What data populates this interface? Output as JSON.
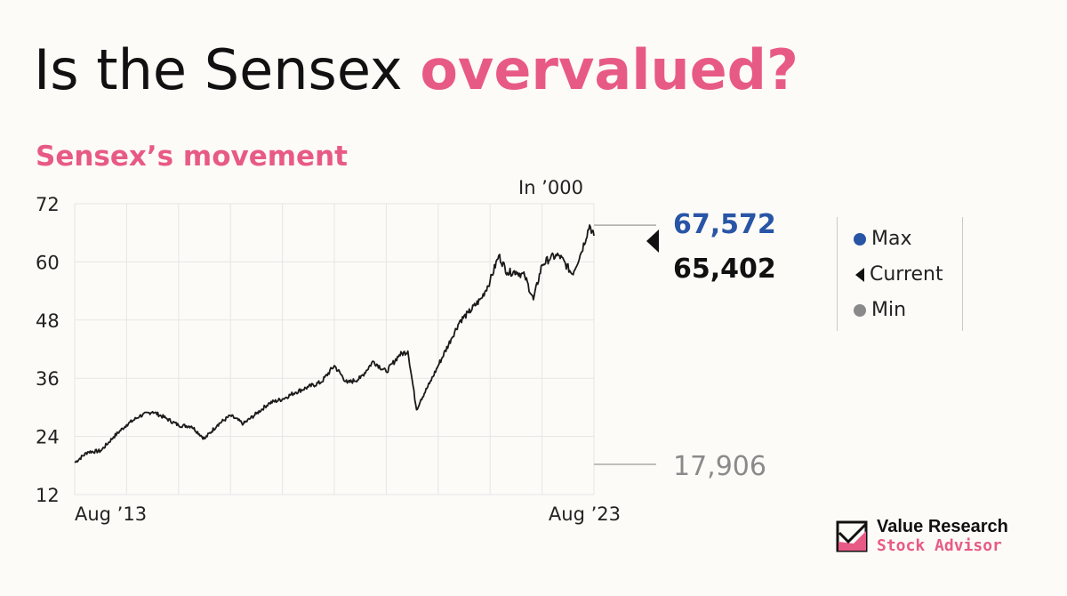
{
  "header": {
    "title_prefix": "Is the Sensex ",
    "title_accent": "overvalued?",
    "subtitle": "Sensex’s movement"
  },
  "chart_data": {
    "type": "line",
    "unit_label": "In ’000",
    "ylim": [
      12,
      72
    ],
    "yticks": [
      12,
      24,
      36,
      48,
      60,
      72
    ],
    "x_tick_labels": [
      "Aug ’13",
      "Aug ’23"
    ],
    "xlim": [
      "2013-08",
      "2023-08"
    ],
    "grid": true,
    "series": [
      {
        "x": [
          "2013-08",
          "2013-11",
          "2014-02",
          "2014-05",
          "2014-08",
          "2014-11",
          "2015-02",
          "2015-05",
          "2015-08",
          "2015-11",
          "2016-02",
          "2016-05",
          "2016-08",
          "2016-11",
          "2017-02",
          "2017-05",
          "2017-08",
          "2017-11",
          "2018-02",
          "2018-05",
          "2018-08",
          "2018-11",
          "2019-02",
          "2019-05",
          "2019-08",
          "2019-11",
          "2020-01",
          "2020-03",
          "2020-04",
          "2020-06",
          "2020-08",
          "2020-11",
          "2021-01",
          "2021-03",
          "2021-06",
          "2021-08",
          "2021-10",
          "2021-12",
          "2022-02",
          "2022-04",
          "2022-06",
          "2022-08",
          "2022-10",
          "2022-12",
          "2023-03",
          "2023-05",
          "2023-07",
          "2023-08"
        ],
        "y": [
          18.6,
          20.8,
          21.0,
          23.9,
          26.4,
          28.2,
          29.1,
          27.8,
          26.3,
          26.1,
          23.5,
          26.4,
          28.3,
          26.6,
          28.7,
          30.9,
          31.7,
          33.1,
          34.2,
          35.2,
          38.6,
          35.0,
          36.0,
          39.5,
          37.3,
          40.8,
          41.6,
          29.5,
          31.6,
          34.9,
          38.6,
          44.1,
          47.8,
          49.5,
          52.5,
          56.1,
          61.3,
          57.8,
          58.0,
          57.1,
          52.2,
          59.4,
          60.9,
          61.3,
          57.5,
          61.8,
          67.6,
          65.4
        ]
      }
    ],
    "annotations": {
      "max": "67,572",
      "current": "65,402",
      "min": "17,906",
      "max_value": 67.572,
      "current_value": 65.402,
      "min_value": 17.906
    },
    "legend": [
      "Max",
      "Current",
      "Min"
    ],
    "legend_position": "right"
  },
  "colors": {
    "accent": "#e85a86",
    "max": "#2855a6",
    "current": "#111111",
    "min": "#8a8a8a",
    "line": "#1a1a1a",
    "grid": "#e6e6e6"
  },
  "brand": {
    "line1": "Value Research",
    "line2": "Stock Advisor",
    "icon": "checkbox-logo-icon"
  }
}
